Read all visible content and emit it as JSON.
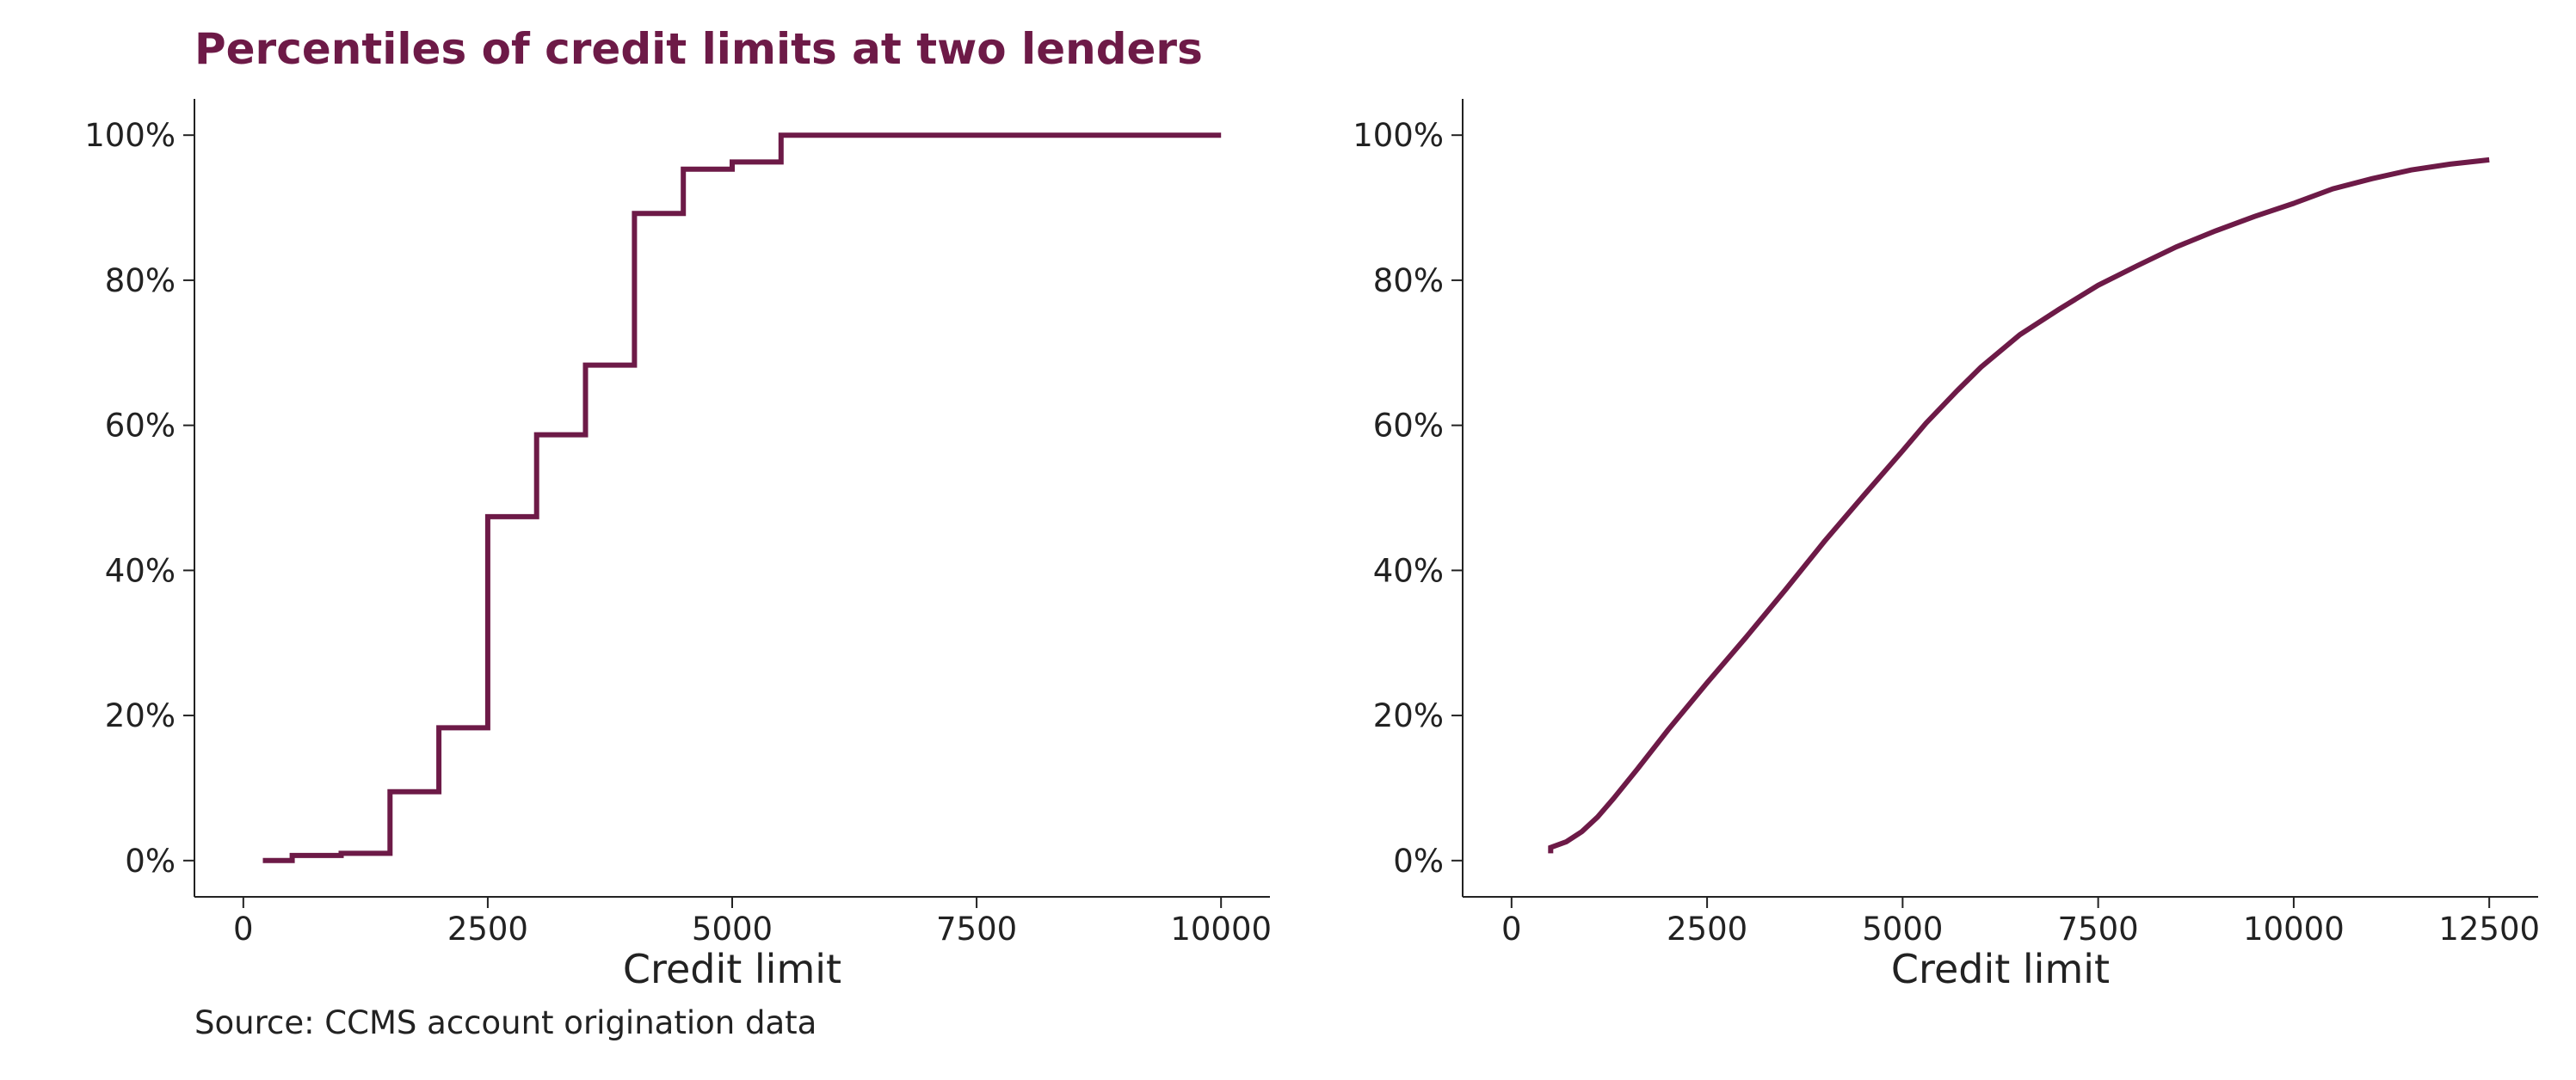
{
  "title": "Percentiles of credit limits at two lenders",
  "source": "Source: CCMS account origination data",
  "colors": {
    "line": "#6d1a47",
    "title": "#6d1a47",
    "axis": "#222222",
    "text": "#222222"
  },
  "chart_data": [
    {
      "type": "line",
      "step": true,
      "title": "Percentiles of credit limits at two lenders",
      "xlabel": "Credit limit",
      "ylabel": "",
      "xlim": [
        -500,
        10500
      ],
      "ylim": [
        -5,
        105
      ],
      "xticks": [
        0,
        2500,
        5000,
        7500,
        10000
      ],
      "yticks": [
        0,
        20,
        40,
        60,
        80,
        100
      ],
      "ytick_format": "percent",
      "grid": false,
      "legend": "none",
      "series": [
        {
          "x": [
            200,
            500,
            1000,
            1500,
            2000,
            2500,
            3000,
            3500,
            4000,
            4500,
            5000,
            5500,
            10000
          ],
          "y": [
            0,
            0.7,
            1.0,
            9.5,
            18.3,
            47.4,
            58.7,
            68.3,
            89.2,
            95.3,
            96.3,
            100.0,
            100.0
          ]
        }
      ]
    },
    {
      "type": "line",
      "step": false,
      "xlabel": "Credit limit",
      "ylabel": "",
      "xlim": [
        -625,
        13125
      ],
      "ylim": [
        -5,
        105
      ],
      "xticks": [
        0,
        2500,
        5000,
        7500,
        10000,
        12500
      ],
      "yticks": [
        0,
        20,
        40,
        60,
        80,
        100
      ],
      "ytick_format": "percent",
      "grid": false,
      "legend": "none",
      "series": [
        {
          "x": [
            500,
            500,
            700,
            900,
            1100,
            1300,
            1600,
            2000,
            2500,
            3000,
            3500,
            4000,
            4500,
            5000,
            5300,
            5700,
            6000,
            6500,
            7000,
            7500,
            8000,
            8500,
            9000,
            9500,
            10000,
            10500,
            11000,
            11500,
            12000,
            12500
          ],
          "y": [
            1.0,
            1.8,
            2.6,
            4.0,
            6.0,
            8.5,
            12.5,
            18.0,
            24.5,
            30.8,
            37.3,
            44.0,
            50.3,
            56.5,
            60.3,
            64.8,
            68.0,
            72.5,
            76.0,
            79.3,
            82.0,
            84.6,
            86.8,
            88.8,
            90.6,
            92.6,
            94.0,
            95.2,
            96.0,
            96.6
          ]
        }
      ]
    }
  ]
}
